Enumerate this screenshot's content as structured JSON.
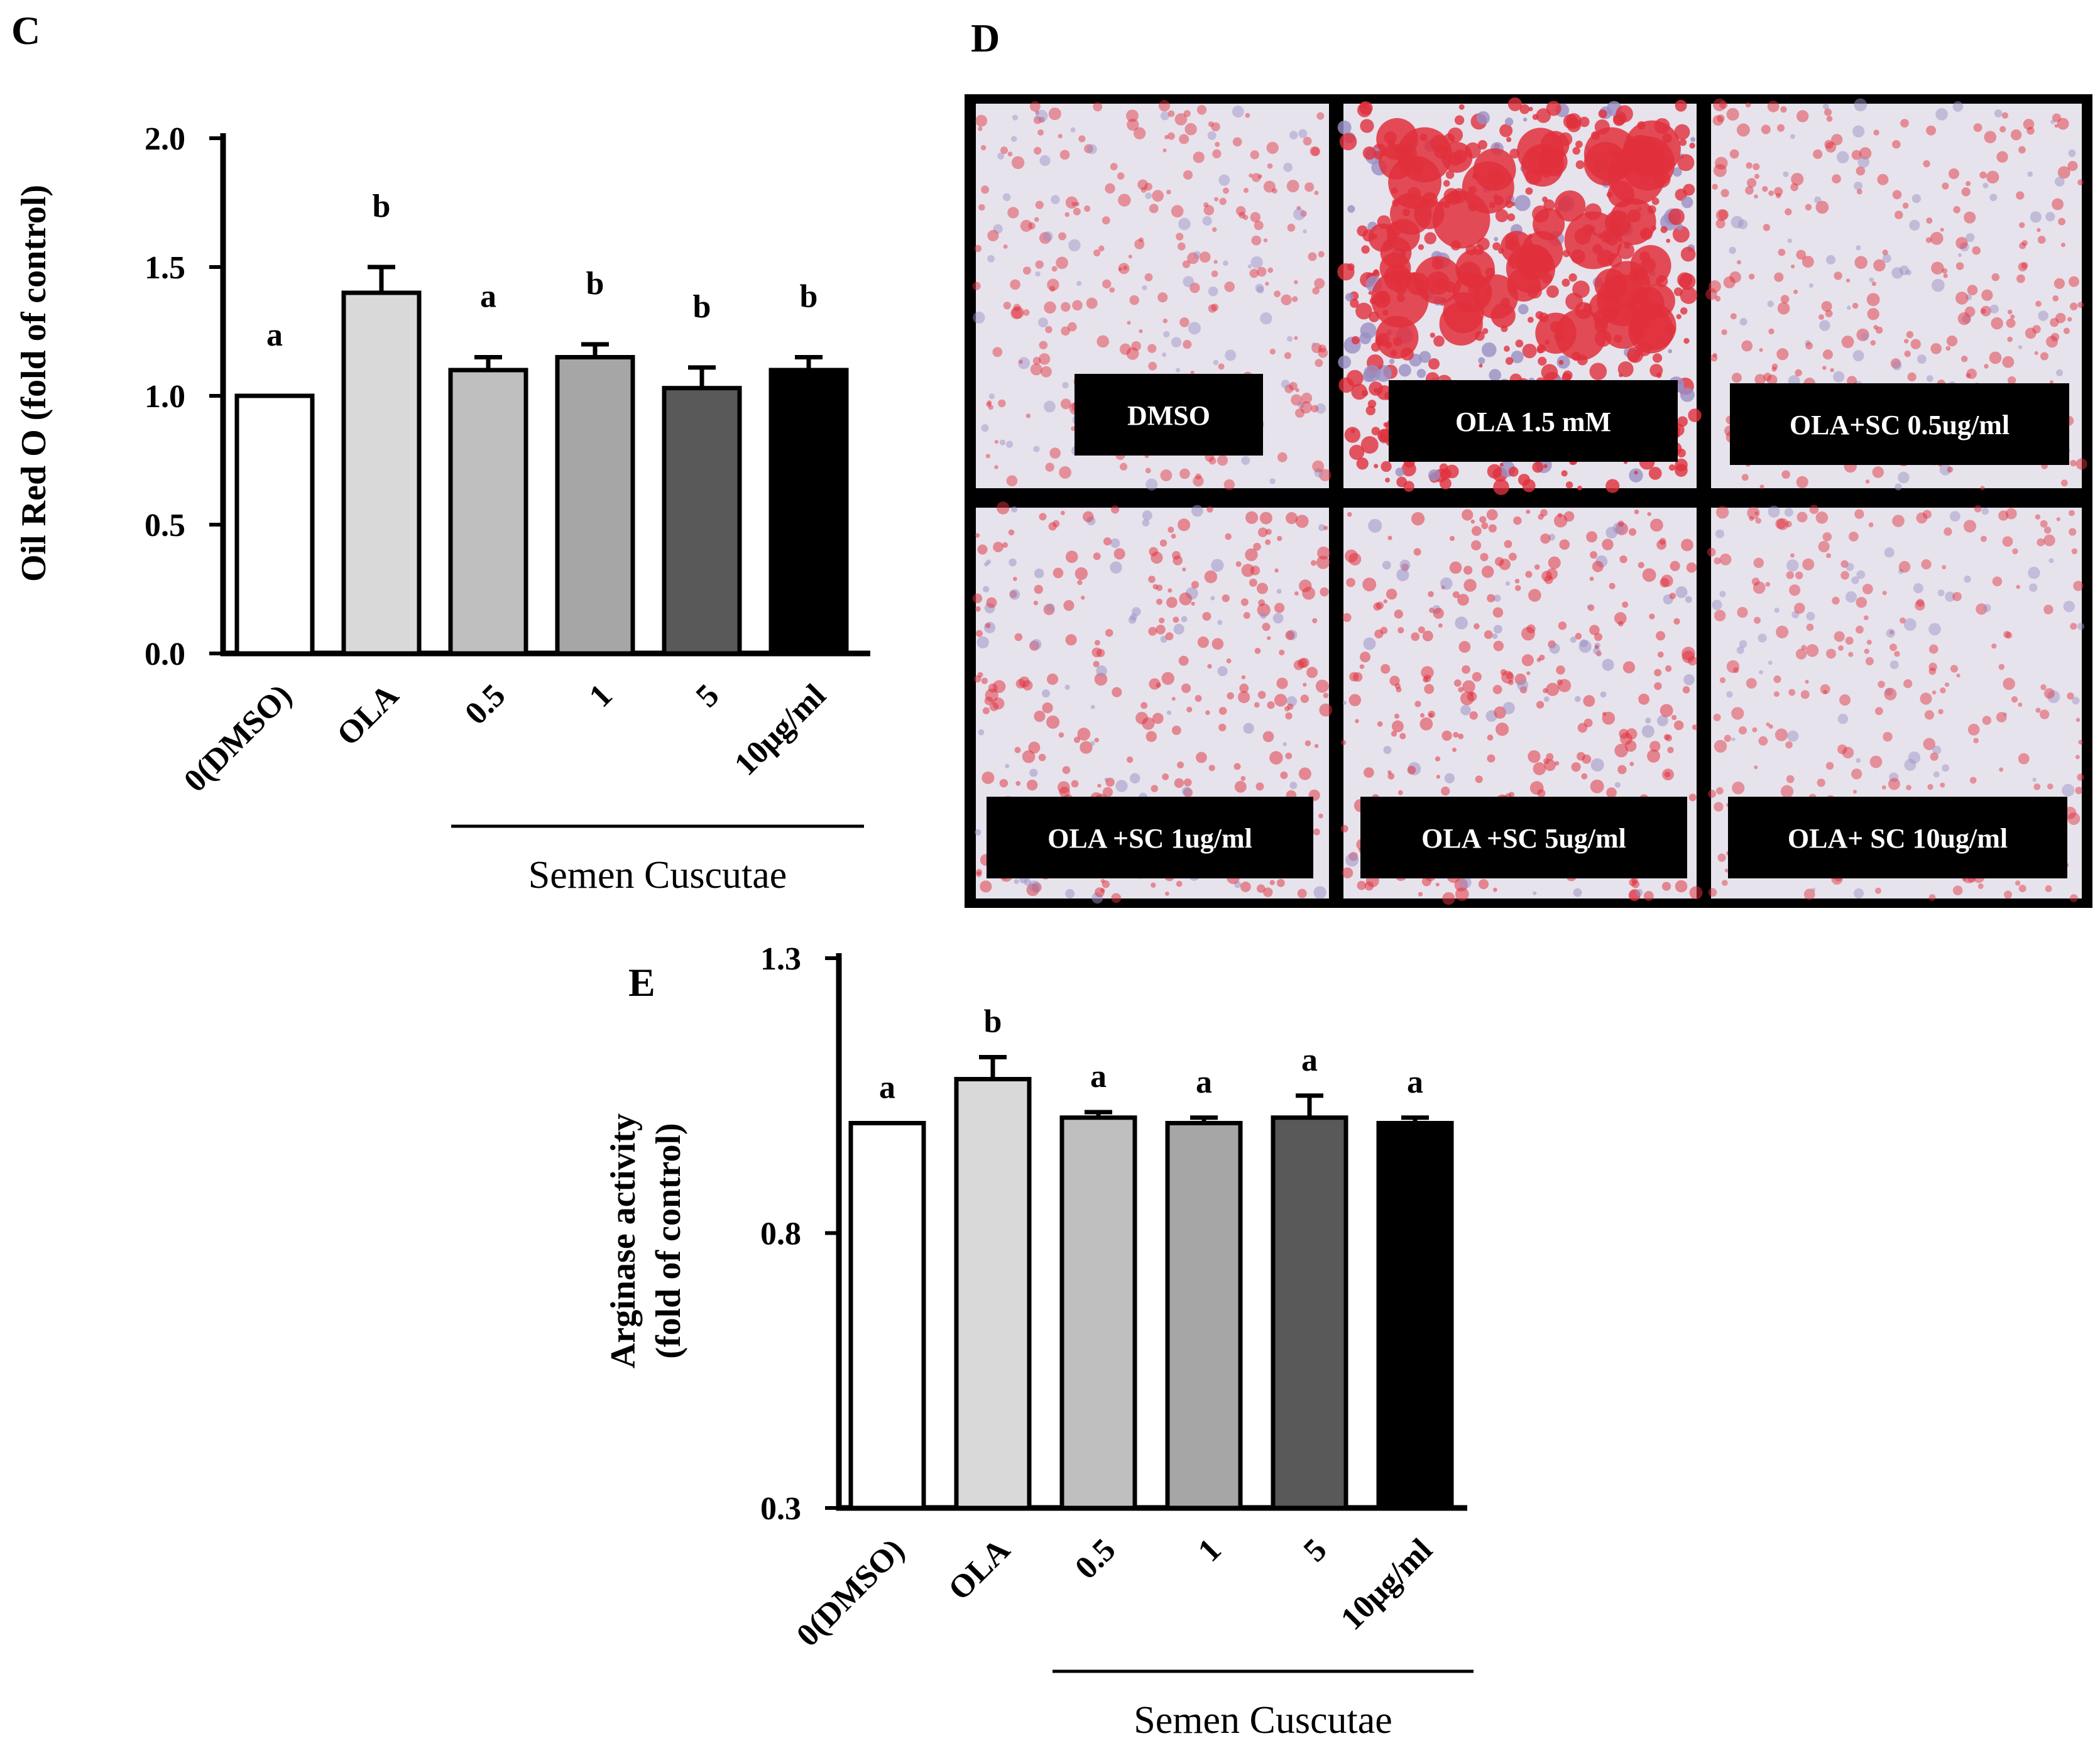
{
  "panels": {
    "c": "C",
    "d": "D",
    "e": "E"
  },
  "chart_data": [
    {
      "type": "bar",
      "panel": "C",
      "categories": [
        "0(DMSO)",
        "OLA",
        "0.5",
        "1",
        "5",
        "10μg/ml"
      ],
      "values": [
        1.0,
        1.4,
        1.1,
        1.15,
        1.03,
        1.1
      ],
      "errors": [
        0.0,
        0.1,
        0.05,
        0.05,
        0.08,
        0.05
      ],
      "significance": [
        "a",
        "b",
        "a",
        "b",
        "b",
        "b"
      ],
      "ylabel": "Oil Red O (fold of control)",
      "yticks": [
        "0.0",
        "0.5",
        "1.0",
        "1.5",
        "2.0"
      ],
      "ylim": [
        0,
        2.0
      ],
      "group_label": "Semen Cuscutae",
      "bar_colors": [
        "#ffffff",
        "#d9d9d9",
        "#bfbfbf",
        "#a6a6a6",
        "#595959",
        "#000000"
      ]
    },
    {
      "type": "bar",
      "panel": "E",
      "categories": [
        "0(DMSO)",
        "OLA",
        "0.5",
        "1",
        "5",
        "10μg/ml"
      ],
      "values": [
        1.0,
        1.08,
        1.01,
        1.0,
        1.01,
        1.0
      ],
      "errors": [
        0.0,
        0.04,
        0.01,
        0.01,
        0.04,
        0.01
      ],
      "significance": [
        "a",
        "b",
        "a",
        "a",
        "a",
        "a"
      ],
      "ylabel_lines": [
        "Arginase activity",
        "(fold of control)"
      ],
      "yticks": [
        "0.3",
        "0.8",
        "1.3"
      ],
      "ylim": [
        0.3,
        1.3
      ],
      "group_label": "Semen Cuscutae",
      "bar_colors": [
        "#ffffff",
        "#d9d9d9",
        "#bfbfbf",
        "#a6a6a6",
        "#595959",
        "#000000"
      ]
    }
  ],
  "images": {
    "labels": [
      "DMSO",
      "OLA 1.5 mM",
      "OLA+SC 0.5ug/ml",
      "OLA +SC 1ug/ml",
      "OLA +SC 5ug/ml",
      "OLA+ SC 10ug/ml"
    ],
    "stain_intensity": [
      0.25,
      1.0,
      0.3,
      0.35,
      0.4,
      0.25
    ],
    "background_color": "#e7e3ec",
    "stain_color": "#e0303c"
  }
}
